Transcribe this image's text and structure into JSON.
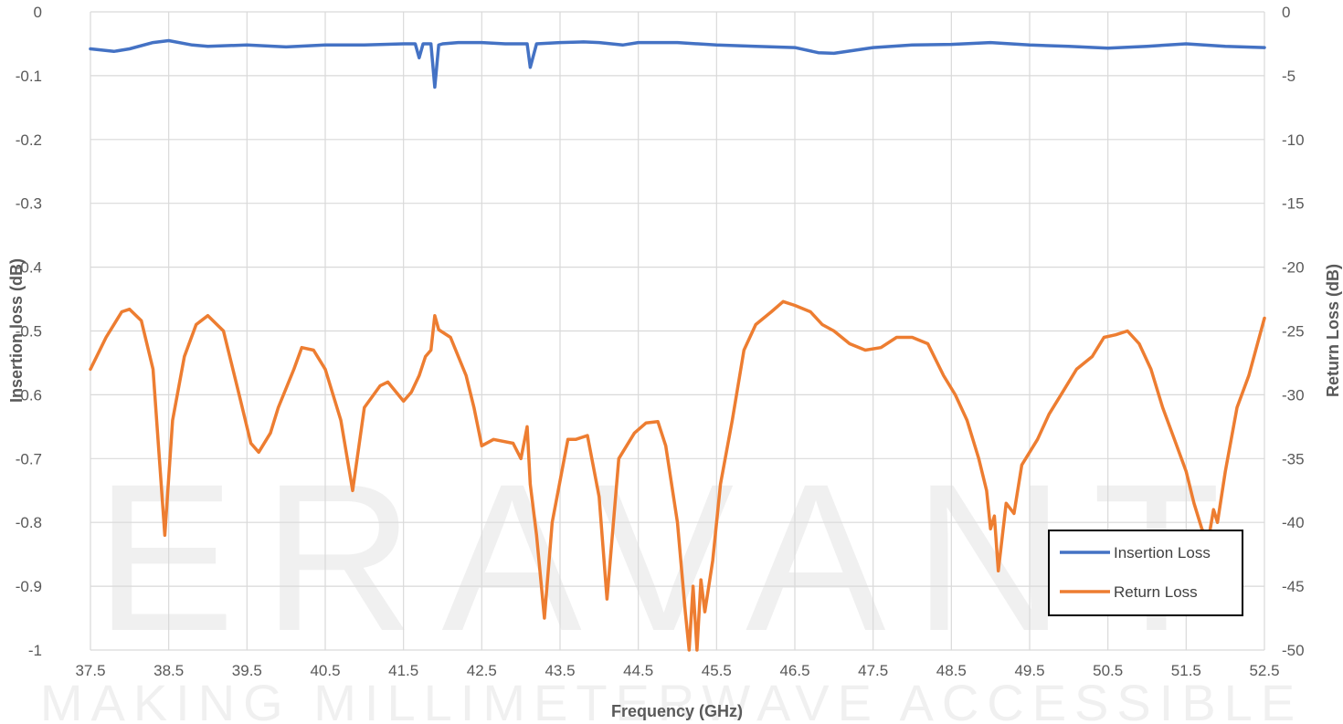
{
  "watermark": {
    "logo": "ERAVANT",
    "tagline": "MAKING MILLIMETERWAVE ACCESSIBLE"
  },
  "chart_data": {
    "type": "line",
    "title": "",
    "xlabel": "Frequency (GHz)",
    "ylabel_left": "Insertion loss (dB)",
    "ylabel_right": "Return Loss (dB)",
    "xlim": [
      37.5,
      52.5
    ],
    "ylim_left": [
      -1,
      0
    ],
    "ylim_right": [
      -50,
      0
    ],
    "x_ticks": [
      "37.5",
      "38.5",
      "39.5",
      "40.5",
      "41.5",
      "42.5",
      "43.5",
      "44.5",
      "45.5",
      "46.5",
      "47.5",
      "48.5",
      "49.5",
      "50.5",
      "51.5",
      "52.5"
    ],
    "y_ticks_left": [
      "0",
      "-0.1",
      "-0.2",
      "-0.3",
      "-0.4",
      "-0.5",
      "-0.6",
      "-0.7",
      "-0.8",
      "-0.9",
      "-1"
    ],
    "y_ticks_right": [
      "0",
      "-5",
      "-10",
      "-15",
      "-20",
      "-25",
      "-30",
      "-35",
      "-40",
      "-45",
      "-50"
    ],
    "grid": "vertical and horizontal",
    "legend_position": "bottom-right",
    "series": [
      {
        "name": "Insertion Loss",
        "axis": "left",
        "color": "#4472C4",
        "x": [
          37.5,
          37.8,
          38.0,
          38.3,
          38.5,
          38.8,
          39.0,
          39.5,
          40.0,
          40.5,
          41.0,
          41.5,
          41.65,
          41.7,
          41.75,
          41.8,
          41.85,
          41.9,
          41.95,
          42.0,
          42.2,
          42.5,
          42.8,
          43.0,
          43.08,
          43.12,
          43.2,
          43.5,
          43.8,
          44.0,
          44.3,
          44.5,
          45.0,
          45.5,
          46.0,
          46.5,
          46.8,
          47.0,
          47.5,
          48.0,
          48.5,
          49.0,
          49.5,
          50.0,
          50.5,
          51.0,
          51.5,
          52.0,
          52.5
        ],
        "y": [
          -0.058,
          -0.062,
          -0.058,
          -0.048,
          -0.045,
          -0.052,
          -0.054,
          -0.052,
          -0.055,
          -0.052,
          -0.052,
          -0.05,
          -0.05,
          -0.072,
          -0.05,
          -0.05,
          -0.05,
          -0.118,
          -0.052,
          -0.05,
          -0.048,
          -0.048,
          -0.05,
          -0.05,
          -0.05,
          -0.087,
          -0.05,
          -0.048,
          -0.047,
          -0.048,
          -0.052,
          -0.048,
          -0.048,
          -0.052,
          -0.054,
          -0.056,
          -0.064,
          -0.065,
          -0.056,
          -0.052,
          -0.051,
          -0.048,
          -0.052,
          -0.054,
          -0.057,
          -0.054,
          -0.05,
          -0.054,
          -0.056
        ]
      },
      {
        "name": "Return Loss",
        "axis": "right",
        "color": "#ED7D31",
        "x": [
          37.5,
          37.7,
          37.9,
          38.0,
          38.15,
          38.3,
          38.45,
          38.55,
          38.7,
          38.85,
          39.0,
          39.2,
          39.4,
          39.55,
          39.65,
          39.8,
          39.9,
          40.1,
          40.2,
          40.35,
          40.5,
          40.7,
          40.85,
          41.0,
          41.2,
          41.3,
          41.5,
          41.6,
          41.7,
          41.78,
          41.85,
          41.9,
          41.95,
          42.1,
          42.3,
          42.4,
          42.5,
          42.65,
          42.9,
          43.0,
          43.08,
          43.12,
          43.2,
          43.3,
          43.4,
          43.6,
          43.7,
          43.85,
          44.0,
          44.1,
          44.25,
          44.45,
          44.6,
          44.75,
          44.85,
          45.0,
          45.1,
          45.15,
          45.2,
          45.25,
          45.3,
          45.35,
          45.45,
          45.55,
          45.7,
          45.85,
          46.0,
          46.2,
          46.35,
          46.5,
          46.7,
          46.85,
          47.0,
          47.2,
          47.4,
          47.6,
          47.8,
          48.0,
          48.2,
          48.4,
          48.55,
          48.7,
          48.85,
          48.95,
          49.0,
          49.05,
          49.1,
          49.2,
          49.3,
          49.4,
          49.6,
          49.75,
          49.9,
          50.1,
          50.3,
          50.45,
          50.6,
          50.75,
          50.9,
          51.05,
          51.2,
          51.35,
          51.5,
          51.6,
          51.7,
          51.78,
          51.85,
          51.9,
          52.0,
          52.15,
          52.3,
          52.5
        ],
        "y": [
          -28,
          -25.5,
          -23.5,
          -23.3,
          -24.2,
          -28,
          -41,
          -32,
          -27,
          -24.5,
          -23.8,
          -25,
          -30,
          -33.8,
          -34.5,
          -33,
          -31,
          -28,
          -26.3,
          -26.5,
          -28,
          -32,
          -37.5,
          -31,
          -29.3,
          -29,
          -30.5,
          -29.8,
          -28.5,
          -27,
          -26.5,
          -23.8,
          -24.9,
          -25.5,
          -28.5,
          -31,
          -34,
          -33.5,
          -33.8,
          -35,
          -32.5,
          -37,
          -41,
          -47.5,
          -40,
          -33.5,
          -33.5,
          -33.2,
          -38,
          -46,
          -35,
          -33,
          -32.2,
          -32.1,
          -34,
          -40,
          -47,
          -50,
          -45,
          -50,
          -44.5,
          -47,
          -43,
          -37,
          -32,
          -26.5,
          -24.5,
          -23.5,
          -22.7,
          -23,
          -23.5,
          -24.5,
          -25,
          -26,
          -26.5,
          -26.3,
          -25.5,
          -25.5,
          -26,
          -28.5,
          -30,
          -32,
          -35,
          -37.5,
          -40.5,
          -39.5,
          -43.8,
          -38.5,
          -39.3,
          -35.5,
          -33.5,
          -31.5,
          -30,
          -28,
          -27,
          -25.5,
          -25.3,
          -25,
          -26,
          -28,
          -31,
          -33.5,
          -36,
          -38.5,
          -40.5,
          -41.5,
          -39,
          -40,
          -36,
          -31,
          -28.5,
          -24
        ]
      }
    ]
  }
}
